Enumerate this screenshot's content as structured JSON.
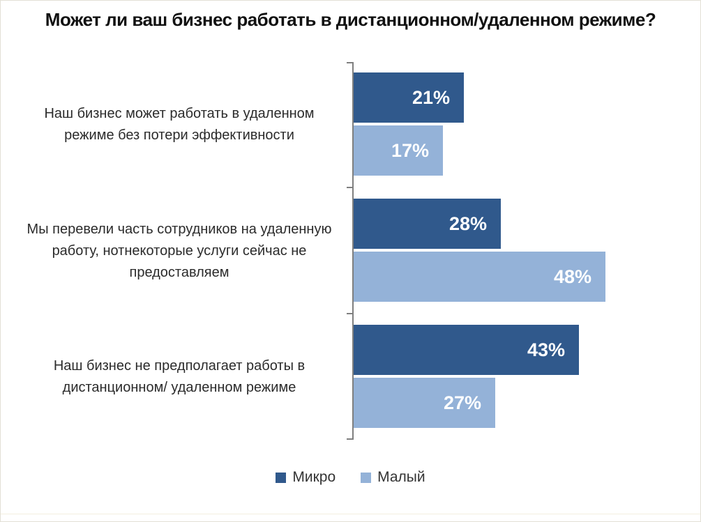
{
  "chart_data": {
    "type": "bar",
    "orientation": "horizontal",
    "title": "Может ли ваш бизнес работать в дистанционном/удаленном режиме?",
    "categories": [
      "Наш бизнес может работать в удаленном режиме без потери эффективности",
      "Мы перевели часть сотрудников на удаленную работу, нотнекоторые услуги сейчас не предоставляем",
      "Наш бизнес не предполагает работы в дистанционном/ удаленном режиме"
    ],
    "series": [
      {
        "name": "Микро",
        "color": "#30598c",
        "values": [
          21,
          28,
          43
        ],
        "labels": [
          "21%",
          "28%",
          "43%"
        ]
      },
      {
        "name": "Малый",
        "color": "#94b2d8",
        "values": [
          17,
          48,
          27
        ],
        "labels": [
          "17%",
          "48%",
          "27%"
        ]
      }
    ],
    "xlim": [
      0,
      60
    ],
    "grid": false,
    "legend_position": "bottom",
    "value_label_color": "#ffffff",
    "axis_color": "#7f7f7f",
    "title_color": "#111111",
    "category_text_color": "#2b2b2b"
  }
}
